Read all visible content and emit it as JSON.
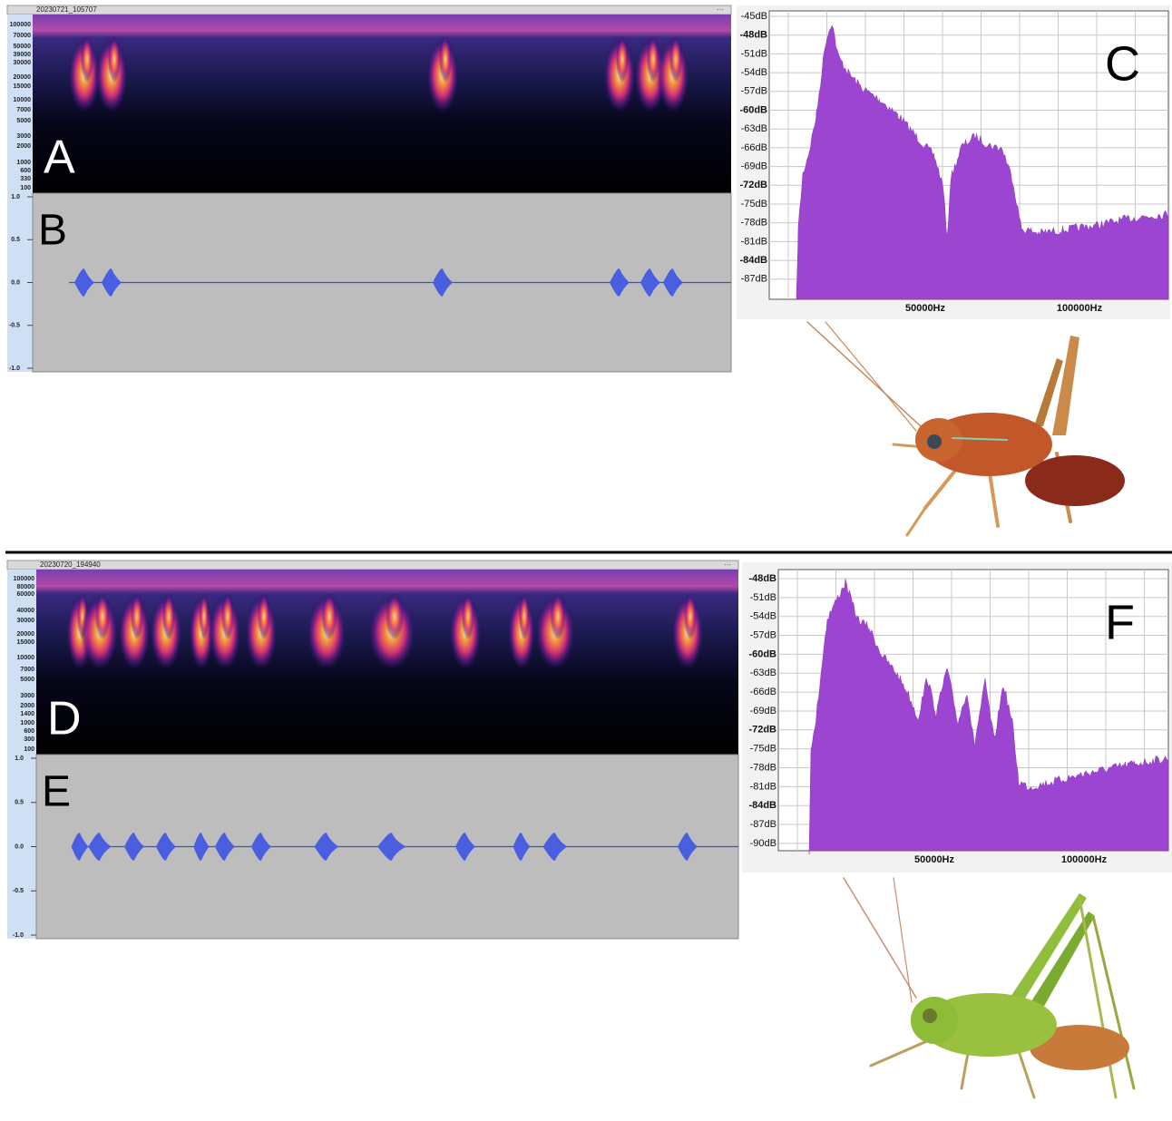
{
  "panels": [
    {
      "track_name": "20230721_105707",
      "spectrogram_label": "A",
      "frequency_ticks": [
        "100000",
        "70000",
        "50000",
        "39000",
        "30000",
        "20000",
        "15000",
        "10000",
        "7000",
        "5000",
        "3000",
        "2000",
        "1000",
        "600",
        "330",
        "100"
      ],
      "waveform_label": "B",
      "amplitude_ticks": [
        "1.0",
        "0.5",
        "0.0",
        "-0.5",
        "-1.0"
      ],
      "spectrum_label": "C",
      "db_ticks": [
        "-45dB",
        "-48dB",
        "-51dB",
        "-54dB",
        "-57dB",
        "-60dB",
        "-63dB",
        "-66dB",
        "-69dB",
        "-72dB",
        "-75dB",
        "-78dB",
        "-81dB",
        "-84dB",
        "-87dB"
      ],
      "hz_ticks": [
        "50000Hz",
        "100000Hz"
      ]
    },
    {
      "track_name": "20230720_194940",
      "spectrogram_label": "D",
      "frequency_ticks": [
        "100000",
        "80000",
        "60000",
        "40000",
        "30000",
        "20000",
        "15000",
        "10000",
        "7000",
        "5000",
        "3000",
        "2000",
        "1400",
        "1000",
        "600",
        "300",
        "100"
      ],
      "waveform_label": "E",
      "amplitude_ticks": [
        "1.0",
        "0.5",
        "0.0",
        "-0.5",
        "-1.0"
      ],
      "spectrum_label": "F",
      "db_ticks": [
        "-48dB",
        "-51dB",
        "-54dB",
        "-57dB",
        "-60dB",
        "-63dB",
        "-66dB",
        "-69dB",
        "-72dB",
        "-75dB",
        "-78dB",
        "-81dB",
        "-84dB",
        "-87dB",
        "-90dB"
      ],
      "hz_ticks": [
        "50000Hz",
        "100000Hz"
      ]
    }
  ]
}
